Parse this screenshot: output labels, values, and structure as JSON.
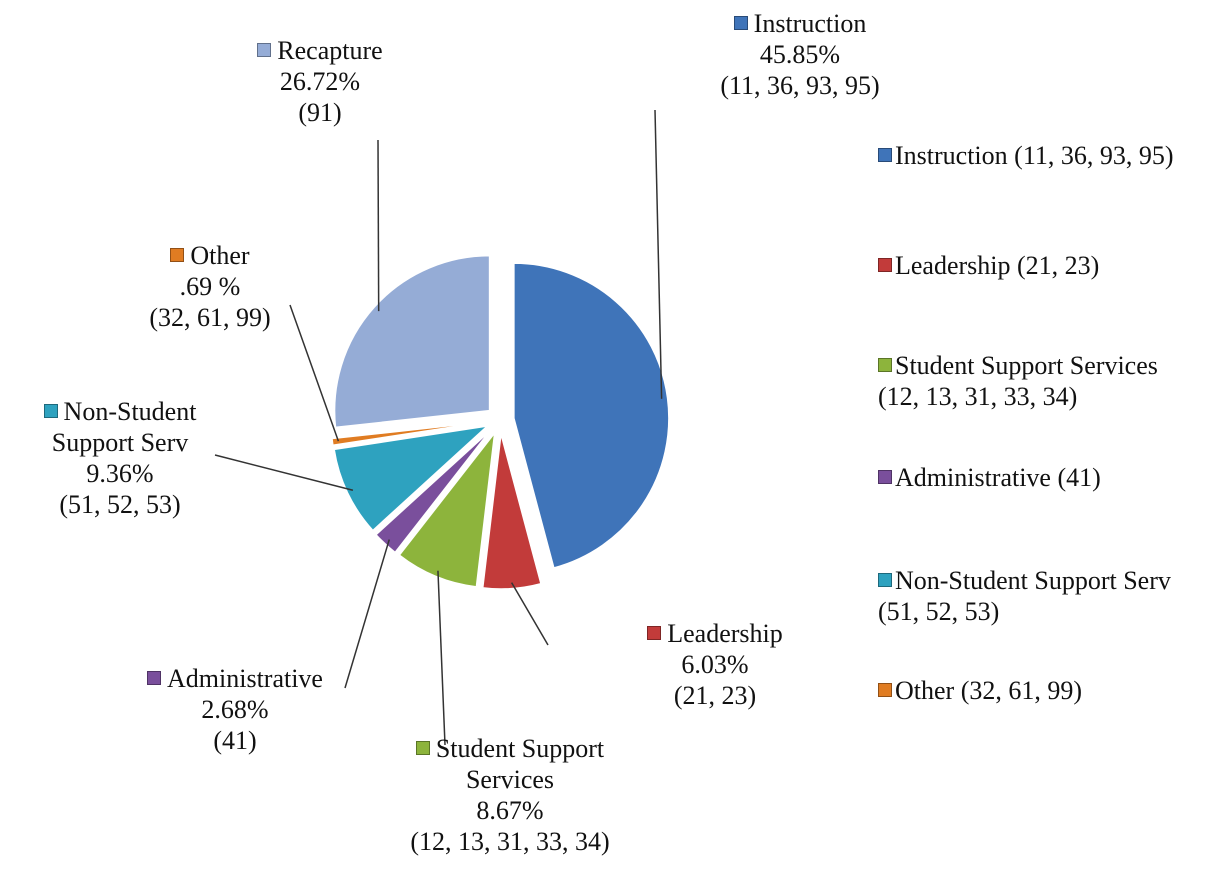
{
  "chart_data": {
    "type": "pie",
    "categories": [
      "Instruction",
      "Leadership",
      "Student Support Services",
      "Administrative",
      "Non-Student Support Serv",
      "Other",
      "Recapture"
    ],
    "values": [
      45.85,
      6.03,
      8.67,
      2.68,
      9.36,
      0.69,
      26.72
    ],
    "value_labels": [
      "45.85%",
      "6.03%",
      "8.67%",
      "2.68%",
      "9.36%",
      ".69 %",
      "26.72%"
    ],
    "codes": [
      "(11, 36, 93, 95)",
      "(21, 23)",
      "(12, 13, 31, 33, 34)",
      "(41)",
      "(51, 52, 53)",
      "(32, 61, 99)",
      "(91)"
    ],
    "colors": [
      "#3f74b9",
      "#c23b3a",
      "#8db43c",
      "#7a4f9c",
      "#2ea2bf",
      "#e07c22",
      "#95acd6"
    ],
    "legend": {
      "position": "right",
      "entries": [
        {
          "name": "Instruction",
          "codes": "(11, 36, 93, 95)",
          "color": "#3f74b9"
        },
        {
          "name": "Leadership",
          "codes": "(21, 23)",
          "color": "#c23b3a"
        },
        {
          "name": "Student Support Services",
          "codes": "(12, 13, 31, 33, 34)",
          "color": "#8db43c"
        },
        {
          "name": "Administrative",
          "codes": "(41)",
          "color": "#7a4f9c"
        },
        {
          "name": "Non-Student Support Serv",
          "codes": "(51, 52, 53)",
          "color": "#2ea2bf"
        },
        {
          "name": "Other",
          "codes": "(32, 61, 99)",
          "color": "#e07c22"
        }
      ]
    }
  }
}
